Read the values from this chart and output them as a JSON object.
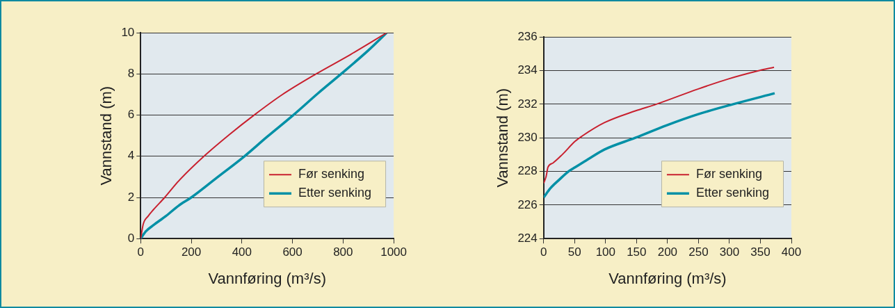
{
  "chart_data": [
    {
      "type": "line",
      "xlabel": "Vannføring (m³/s)",
      "ylabel": "Vannstand (m)",
      "xlim": [
        0,
        1000
      ],
      "xticks": [
        0,
        200,
        400,
        600,
        800,
        1000
      ],
      "ylim": [
        0,
        10
      ],
      "yticks": [
        0,
        2,
        4,
        6,
        8,
        10
      ],
      "grid": "y",
      "legend": "bottom right",
      "marker": "none",
      "series": [
        {
          "name": "Før senking",
          "color": "#c8202e",
          "x": [
            0,
            10,
            30,
            50,
            95,
            150,
            250,
            350,
            448,
            560,
            693,
            830,
            972
          ],
          "values": [
            0,
            0.7,
            1.1,
            1.4,
            2,
            2.8,
            4,
            5.05,
            6,
            7,
            8,
            8.95,
            10
          ]
        },
        {
          "name": "Etter senking",
          "color": "#0090a6",
          "x": [
            0,
            20,
            50,
            100,
            150,
            200,
            300,
            410,
            500,
            603,
            700,
            792,
            900,
            972
          ],
          "values": [
            0,
            0.35,
            0.65,
            1.1,
            1.6,
            2,
            2.95,
            4,
            4.95,
            6,
            7.05,
            8,
            9.15,
            10
          ]
        }
      ]
    },
    {
      "type": "line",
      "xlabel": "Vannføring (m³/s)",
      "ylabel": "Vannstand (m)",
      "xlim": [
        0,
        400
      ],
      "xticks": [
        0,
        50,
        100,
        150,
        200,
        250,
        300,
        350,
        400
      ],
      "ylim": [
        224,
        236
      ],
      "yticks": [
        224,
        226,
        228,
        230,
        232,
        234,
        236
      ],
      "grid": "y",
      "legend": "bottom right",
      "marker": "none",
      "series": [
        {
          "name": "Før senking",
          "color": "#c8202e",
          "x": [
            0,
            4,
            7,
            15,
            30,
            51,
            62,
            98,
            148,
            182,
            249,
            298,
            348,
            372
          ],
          "values": [
            227.3,
            227.7,
            228.25,
            228.5,
            229,
            229.8,
            230.1,
            230.9,
            231.6,
            232,
            232.9,
            233.5,
            234,
            234.2
          ]
        },
        {
          "name": "Etter senking",
          "color": "#0090a6",
          "x": [
            0,
            11,
            25,
            40,
            51,
            75,
            98,
            148,
            199,
            249,
            306,
            373
          ],
          "values": [
            226.45,
            227,
            227.5,
            228,
            228.25,
            228.8,
            229.3,
            230,
            230.75,
            231.4,
            232,
            232.65
          ]
        }
      ]
    }
  ]
}
